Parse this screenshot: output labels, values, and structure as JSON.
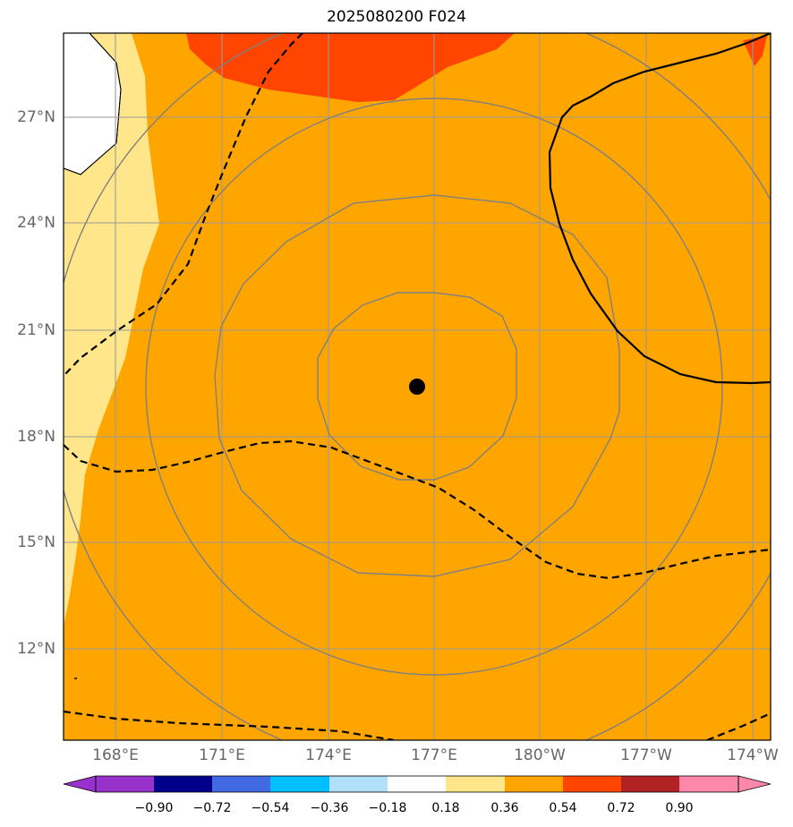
{
  "title": "2025080200 F024",
  "map": {
    "lat_labels": [
      "27°N",
      "24°N",
      "21°N",
      "18°N",
      "15°N",
      "12°N"
    ],
    "lon_labels": [
      "168°E",
      "171°E",
      "174°E",
      "177°E",
      "180°W",
      "177°W",
      "174°W"
    ],
    "center_marker": "storm-center-dot",
    "fill_colors": {
      "base": "#ffa500",
      "light": "#ffe68a",
      "high": "#ff4500",
      "land": "#ffffff"
    },
    "contour_style": {
      "positive": "solid black",
      "negative": "dashed black",
      "range_rings": "#808080"
    }
  },
  "colorbar": {
    "tick_labels": [
      "−0.90",
      "−0.72",
      "−0.54",
      "−0.36",
      "−0.18",
      "0.18",
      "0.36",
      "0.54",
      "0.72",
      "0.90"
    ],
    "colors": [
      "#9932cc",
      "#00008b",
      "#4169e1",
      "#00bfff",
      "#b0e0fa",
      "#ffffff",
      "#ffe68a",
      "#ffa500",
      "#ff4500",
      "#b22222",
      "#ff88aa"
    ]
  }
}
